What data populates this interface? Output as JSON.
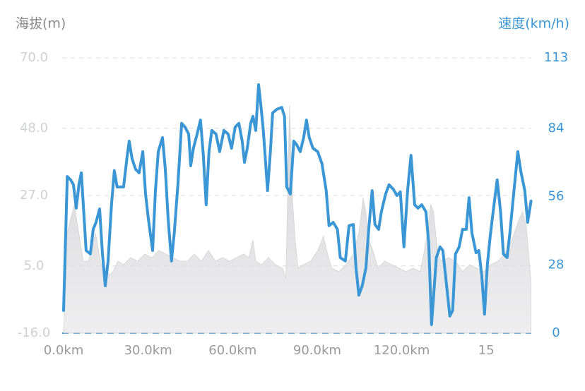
{
  "chart_data": {
    "type": "line",
    "y_label": "海拔(m)",
    "y2_label": "速度(km/h)",
    "xlim": [
      0,
      166
    ],
    "xticks": [
      {
        "value": 0,
        "label": "0.0km"
      },
      {
        "value": 30,
        "label": "30.0km"
      },
      {
        "value": 60,
        "label": "60.0km"
      },
      {
        "value": 90,
        "label": "90.0km"
      },
      {
        "value": 120,
        "label": "120.0km"
      },
      {
        "value": 150,
        "label": "15"
      }
    ],
    "ylim": [
      -16,
      70
    ],
    "yticks": [
      {
        "value": 70,
        "label": "70.0"
      },
      {
        "value": 48,
        "label": "48.0"
      },
      {
        "value": 27,
        "label": "27.0"
      },
      {
        "value": 5,
        "label": "5.0"
      },
      {
        "value": -16,
        "label": "-16.0"
      }
    ],
    "y2lim": [
      0,
      113
    ],
    "y2ticks": [
      113,
      84,
      56,
      28,
      0
    ],
    "grid": true,
    "series": [
      {
        "type": "area",
        "color": "#d4d4d6",
        "x": [
          0,
          1.3,
          2.5,
          3.8,
          5.0,
          7.0,
          8.8,
          11.3,
          13.3,
          15.0,
          16.3,
          17.5,
          19.3,
          21.3,
          23.8,
          26.3,
          28.8,
          31.3,
          33.8,
          36.3,
          38.8,
          41.4,
          43.9,
          46.4,
          48.9,
          51.4,
          53.9,
          56.4,
          58.9,
          61.4,
          63.9,
          65.7,
          67.2,
          68.2,
          70.2,
          72.7,
          75.2,
          77.7,
          78.9,
          80.2,
          81.2,
          82.2,
          83.2,
          85.2,
          87.7,
          90.2,
          92.2,
          94.0,
          95.2,
          97.7,
          100.3,
          102.8,
          104.8,
          106.3,
          107.3,
          108.3,
          109.8,
          111.5,
          114.0,
          116.5,
          119.0,
          121.6,
          124.1,
          126.6,
          127.8,
          129.1,
          130.3,
          131.3,
          132.8,
          134.1,
          136.6,
          139.1,
          141.6,
          144.1,
          146.6,
          149.1,
          151.6,
          154.1,
          156.6,
          159.1,
          161.7,
          162.9,
          164.2,
          165.9
        ],
        "values": [
          -15.6,
          15.3,
          19.7,
          24.1,
          17.5,
          6.5,
          6.5,
          15.3,
          5.4,
          4.3,
          2.1,
          3.2,
          6.5,
          5.4,
          7.6,
          6.5,
          8.7,
          7.6,
          9.8,
          8.7,
          7.6,
          6.5,
          6.5,
          8.7,
          6.5,
          9.8,
          6.5,
          7.6,
          6.5,
          7.6,
          8.7,
          7.6,
          13.1,
          6.5,
          5.4,
          7.6,
          5.4,
          4.3,
          1.0,
          55.0,
          26.3,
          13.1,
          4.3,
          5.4,
          6.5,
          9.8,
          14.2,
          7.6,
          4.3,
          3.2,
          5.4,
          8.7,
          15.3,
          26.3,
          21.9,
          13.1,
          9.8,
          4.3,
          6.5,
          5.4,
          4.3,
          3.2,
          4.3,
          3.2,
          8.7,
          15.3,
          24.1,
          21.9,
          8.7,
          6.5,
          7.6,
          6.5,
          3.2,
          5.4,
          4.3,
          3.2,
          5.4,
          6.5,
          8.7,
          13.1,
          19.7,
          21.9,
          17.5,
          0.1
        ]
      },
      {
        "type": "line",
        "axis": "y2",
        "color": "#3a96d4",
        "x": [
          0,
          1.3,
          2.5,
          3.5,
          4.5,
          5.5,
          6.3,
          7.0,
          8.0,
          9.5,
          10.5,
          11.5,
          12.8,
          13.8,
          14.8,
          15.8,
          17.0,
          18.0,
          19.0,
          21.3,
          22.6,
          23.3,
          24.3,
          25.6,
          26.8,
          28.1,
          29.1,
          30.1,
          31.6,
          32.6,
          33.6,
          35.1,
          36.1,
          37.1,
          38.3,
          39.3,
          40.6,
          41.9,
          43.1,
          44.4,
          45.1,
          46.1,
          47.4,
          48.6,
          49.6,
          50.6,
          51.6,
          52.6,
          54.1,
          55.4,
          56.9,
          58.4,
          59.6,
          60.9,
          62.2,
          63.4,
          64.2,
          65.2,
          66.4,
          67.2,
          68.2,
          69.2,
          69.9,
          70.9,
          72.4,
          73.4,
          74.2,
          75.7,
          77.4,
          78.4,
          79.2,
          80.5,
          81.7,
          82.7,
          84.0,
          85.2,
          86.2,
          87.2,
          88.5,
          90.2,
          91.7,
          93.2,
          94.2,
          95.7,
          97.2,
          98.2,
          100.0,
          101.3,
          102.8,
          103.8,
          104.8,
          106.0,
          107.3,
          108.3,
          109.5,
          110.5,
          111.8,
          112.8,
          114.3,
          115.5,
          117.0,
          118.3,
          119.5,
          120.8,
          122.1,
          123.3,
          124.6,
          125.8,
          127.1,
          128.6,
          129.6,
          130.6,
          132.3,
          133.6,
          134.6,
          135.8,
          137.1,
          138.1,
          139.1,
          140.4,
          141.6,
          142.9,
          143.9,
          144.9,
          146.4,
          147.4,
          148.4,
          149.4,
          150.4,
          151.4,
          152.6,
          153.9,
          155.1,
          156.1,
          157.4,
          158.4,
          159.6,
          161.2,
          162.4,
          163.7,
          164.7,
          165.9
        ],
        "values": [
          9.3,
          64.3,
          62.9,
          60.9,
          51.3,
          61.4,
          65.8,
          52.7,
          33.9,
          32.5,
          42.6,
          45.5,
          51.0,
          32.5,
          19.4,
          29.6,
          52.7,
          66.7,
          60.0,
          60.0,
          73.0,
          78.8,
          71.6,
          67.2,
          65.8,
          74.5,
          57.1,
          46.9,
          33.9,
          58.5,
          74.5,
          80.3,
          67.2,
          46.9,
          29.6,
          41.2,
          61.4,
          86.1,
          84.6,
          81.7,
          68.7,
          75.9,
          81.7,
          87.5,
          73.0,
          52.7,
          74.5,
          83.2,
          81.7,
          74.5,
          83.2,
          81.7,
          75.9,
          84.6,
          86.1,
          78.8,
          70.1,
          75.9,
          86.1,
          89.0,
          83.2,
          102.0,
          94.8,
          83.2,
          58.5,
          74.5,
          90.4,
          91.9,
          92.7,
          89.0,
          60.0,
          57.1,
          78.8,
          77.4,
          74.5,
          80.3,
          87.5,
          80.3,
          75.9,
          74.5,
          69.6,
          58.5,
          44.1,
          45.5,
          42.6,
          31.0,
          29.6,
          44.1,
          44.6,
          26.7,
          15.6,
          19.4,
          26.7,
          42.6,
          58.5,
          44.6,
          42.6,
          49.8,
          57.1,
          60.9,
          59.1,
          56.5,
          58.0,
          35.4,
          58.5,
          73.0,
          52.7,
          51.3,
          52.7,
          49.8,
          36.8,
          3.5,
          31.0,
          35.4,
          33.9,
          20.9,
          7.0,
          9.3,
          32.5,
          35.4,
          42.6,
          42.6,
          55.6,
          41.2,
          33.0,
          33.9,
          23.8,
          7.8,
          28.1,
          39.7,
          51.3,
          62.9,
          49.8,
          32.5,
          31.0,
          41.2,
          55.6,
          74.5,
          65.8,
          58.5,
          45.5,
          54.2
        ]
      }
    ]
  }
}
